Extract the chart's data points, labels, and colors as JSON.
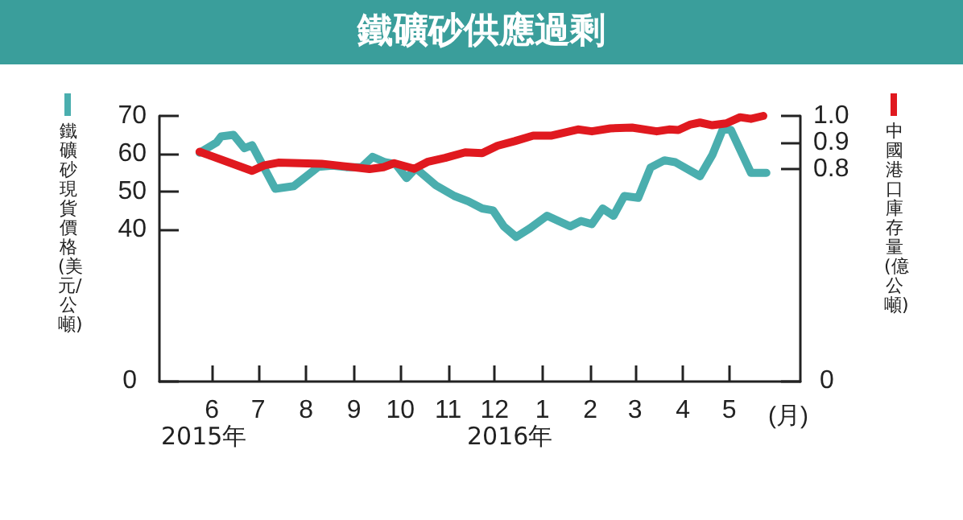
{
  "chart_data": {
    "type": "line",
    "title": "鐵礦砂供應過剩",
    "ylabel": "鐵礦砂現貨價格(美元/公噸)",
    "y2label": "中國港口庫存量(億公噸)",
    "xlabel": "(月)",
    "annotations": [
      "2015年",
      "2016年"
    ],
    "xlim": [
      "2015-04-28",
      "2016-06-16"
    ],
    "xticks": [
      {
        "value": "2015-06-01",
        "label": "6"
      },
      {
        "value": "2015-07-01",
        "label": "7"
      },
      {
        "value": "2015-08-01",
        "label": "8"
      },
      {
        "value": "2015-09-01",
        "label": "9"
      },
      {
        "value": "2015-10-01",
        "label": "10"
      },
      {
        "value": "2015-11-01",
        "label": "11"
      },
      {
        "value": "2015-12-01",
        "label": "12"
      },
      {
        "value": "2016-01-01",
        "label": "1"
      },
      {
        "value": "2016-02-01",
        "label": "2"
      },
      {
        "value": "2016-03-01",
        "label": "3"
      },
      {
        "value": "2016-04-01",
        "label": "4"
      },
      {
        "value": "2016-05-01",
        "label": "5"
      }
    ],
    "ylim": [
      0,
      70
    ],
    "yticks": [
      0,
      40,
      50,
      60,
      70
    ],
    "y2lim": [
      0,
      1.0
    ],
    "y2ticks": [
      0,
      0.8,
      0.9,
      {
        "value": 1.0,
        "label": "1.0"
      }
    ],
    "grid": false,
    "marker": "none",
    "line_style": "solid",
    "series": [
      {
        "color": "#4aaeae",
        "x": [
          "2015-05-24",
          "2015-06-04",
          "2015-06-07",
          "2015-06-15",
          "2015-06-22",
          "2015-06-27",
          "2015-07-12",
          "2015-07-24",
          "2015-08-09",
          "2015-08-18",
          "2015-08-27",
          "2015-09-06",
          "2015-09-13",
          "2015-09-21",
          "2015-09-28",
          "2015-10-05",
          "2015-10-11",
          "2015-10-24",
          "2015-11-05",
          "2015-11-14",
          "2015-11-23",
          "2015-11-30",
          "2015-12-07",
          "2015-12-15",
          "2015-12-24",
          "2016-01-04",
          "2016-01-19",
          "2016-01-26",
          "2016-02-02",
          "2016-02-09",
          "2016-02-16",
          "2016-02-23",
          "2016-03-03",
          "2016-03-11",
          "2016-03-20",
          "2016-03-27",
          "2016-04-12",
          "2016-04-20",
          "2016-04-27",
          "2016-05-02",
          "2016-05-15",
          "2016-05-25"
        ],
        "values": [
          60.3,
          63,
          64.6,
          65,
          61.5,
          62.3,
          50.8,
          51.5,
          56.6,
          56.9,
          56.5,
          56.5,
          59.2,
          57.8,
          57.3,
          53.6,
          56.2,
          51.7,
          48.9,
          47.5,
          45.6,
          45.1,
          40.9,
          38.1,
          40.4,
          43.7,
          40.9,
          42.3,
          41.5,
          45.6,
          43.7,
          48.9,
          48.4,
          56.4,
          58.3,
          57.8,
          54.1,
          59.7,
          66.7,
          66.3,
          55,
          55
        ]
      },
      {
        "color": "#e0191f",
        "axis": "y2",
        "x": [
          "2015-05-24",
          "2015-06-27",
          "2015-07-05",
          "2015-07-14",
          "2015-07-28",
          "2015-08-11",
          "2015-08-25",
          "2015-09-11",
          "2015-09-20",
          "2015-09-27",
          "2015-10-10",
          "2015-10-19",
          "2015-10-30",
          "2015-11-12",
          "2015-11-23",
          "2015-12-03",
          "2015-12-14",
          "2015-12-26",
          "2016-01-07",
          "2016-01-24",
          "2016-02-02",
          "2016-02-14",
          "2016-02-28",
          "2016-03-15",
          "2016-03-23",
          "2016-03-29",
          "2016-04-06",
          "2016-04-12",
          "2016-04-20",
          "2016-04-29",
          "2016-05-08",
          "2016-05-15",
          "2016-05-23"
        ],
        "values": [
          0.865,
          0.793,
          0.814,
          0.824,
          0.822,
          0.82,
          0.811,
          0.8,
          0.807,
          0.822,
          0.801,
          0.828,
          0.842,
          0.863,
          0.86,
          0.888,
          0.905,
          0.926,
          0.926,
          0.949,
          0.942,
          0.953,
          0.956,
          0.942,
          0.949,
          0.947,
          0.968,
          0.975,
          0.965,
          0.972,
          0.995,
          0.989,
          1.0
        ]
      }
    ]
  }
}
